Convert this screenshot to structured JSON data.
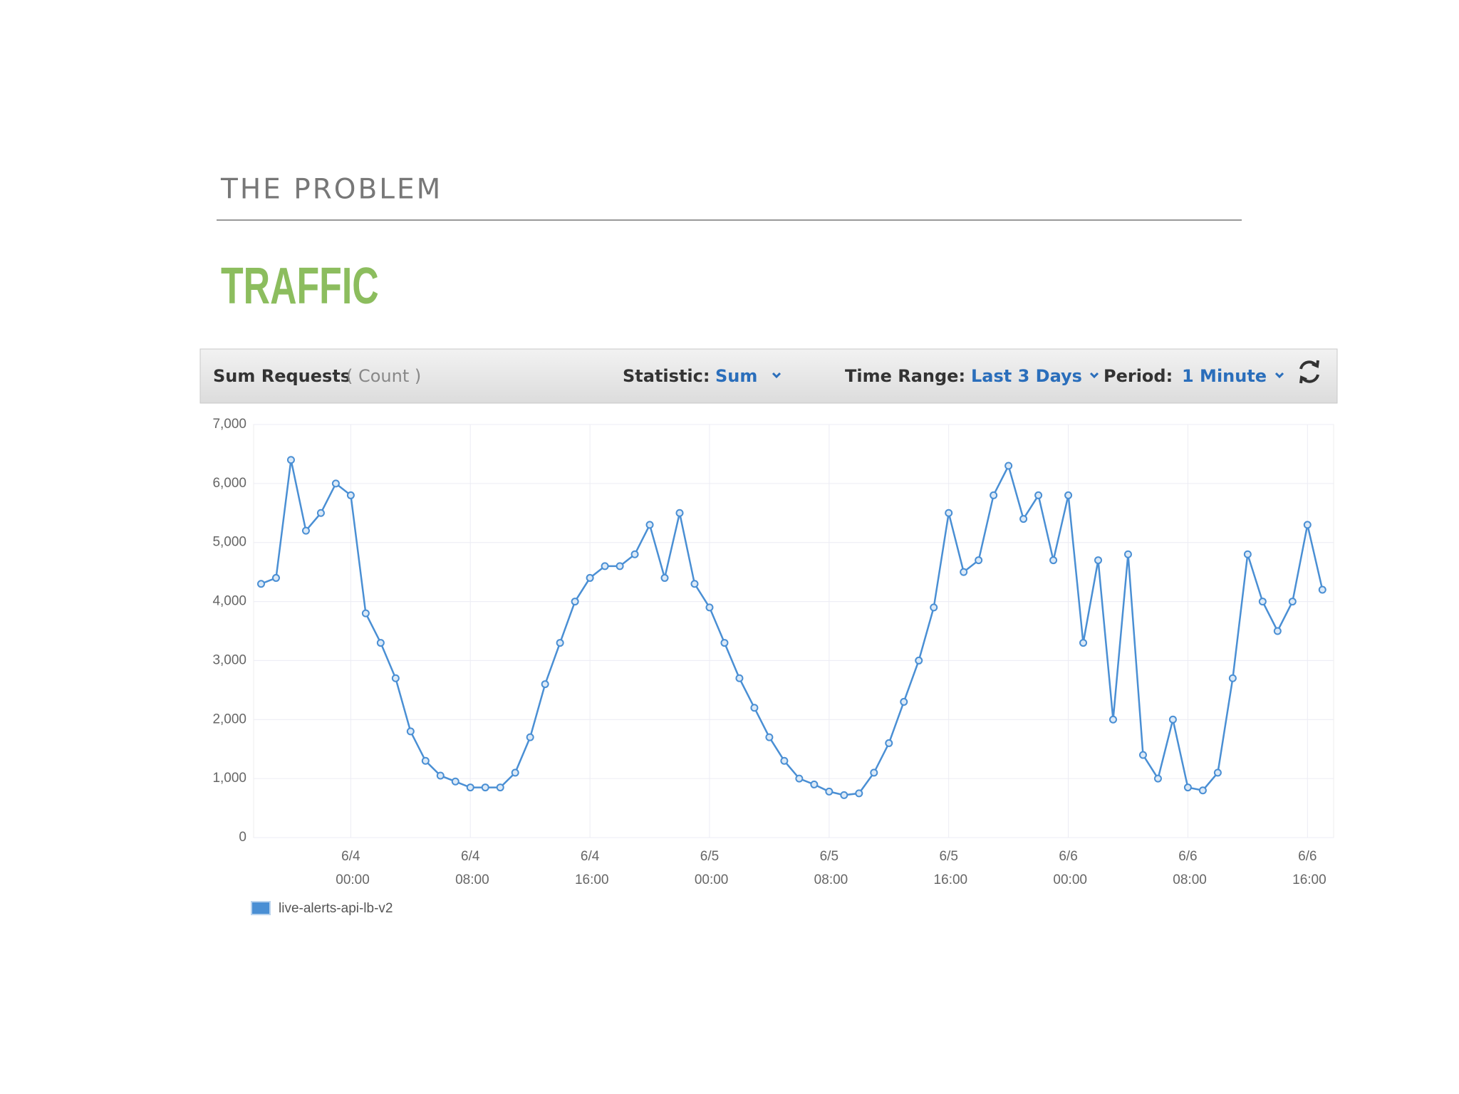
{
  "slide": {
    "section": "THE PROBLEM",
    "heading": "TRAFFIC"
  },
  "toolbar": {
    "metric": "Sum Requests",
    "unit": "( Count )",
    "statistic_label": "Statistic:",
    "statistic": "Sum",
    "range_label": "Time Range:",
    "range": "Last 3 Days",
    "period_label": "Period:",
    "period": "1 Minute"
  },
  "chart_data": {
    "type": "line",
    "x": [
      "6/3 18:00",
      "6/3 19:00",
      "6/3 20:00",
      "6/3 21:00",
      "6/3 22:00",
      "6/3 23:00",
      "6/4 00:00",
      "6/4 01:00",
      "6/4 02:00",
      "6/4 03:00",
      "6/4 04:00",
      "6/4 05:00",
      "6/4 06:00",
      "6/4 07:00",
      "6/4 08:00",
      "6/4 09:00",
      "6/4 10:00",
      "6/4 11:00",
      "6/4 12:00",
      "6/4 13:00",
      "6/4 14:00",
      "6/4 15:00",
      "6/4 16:00",
      "6/4 17:00",
      "6/4 18:00",
      "6/4 19:00",
      "6/4 20:00",
      "6/4 21:00",
      "6/4 22:00",
      "6/4 23:00",
      "6/5 00:00",
      "6/5 01:00",
      "6/5 02:00",
      "6/5 03:00",
      "6/5 04:00",
      "6/5 05:00",
      "6/5 06:00",
      "6/5 07:00",
      "6/5 08:00",
      "6/5 09:00",
      "6/5 10:00",
      "6/5 11:00",
      "6/5 12:00",
      "6/5 13:00",
      "6/5 14:00",
      "6/5 15:00",
      "6/5 16:00",
      "6/5 17:00",
      "6/5 18:00",
      "6/5 19:00",
      "6/5 20:00",
      "6/5 21:00",
      "6/5 22:00",
      "6/5 23:00",
      "6/6 00:00",
      "6/6 01:00",
      "6/6 02:00",
      "6/6 03:00",
      "6/6 04:00",
      "6/6 05:00",
      "6/6 06:00",
      "6/6 07:00",
      "6/6 08:00",
      "6/6 09:00",
      "6/6 10:00",
      "6/6 11:00",
      "6/6 12:00",
      "6/6 13:00",
      "6/6 14:00",
      "6/6 15:00",
      "6/6 16:00",
      "6/6 17:00"
    ],
    "series": [
      {
        "name": "live-alerts-api-lb-v2",
        "color": "#4a8fd4",
        "values": [
          4300,
          4400,
          6400,
          5200,
          5500,
          6000,
          5800,
          3800,
          3300,
          2700,
          1800,
          1300,
          1050,
          950,
          850,
          850,
          850,
          1100,
          1700,
          2600,
          3300,
          4000,
          4400,
          4600,
          4600,
          4800,
          5300,
          4400,
          5500,
          4300,
          3900,
          3300,
          2700,
          2200,
          1700,
          1300,
          1000,
          900,
          780,
          720,
          750,
          1100,
          1600,
          2300,
          3000,
          3900,
          5500,
          4500,
          4700,
          5800,
          6300,
          5400,
          5800,
          4700,
          5800,
          3300,
          4700,
          2000,
          4800,
          1400,
          1000,
          2000,
          850,
          800,
          1100,
          2700,
          4800,
          4000,
          3500,
          4000,
          5300,
          4200
        ]
      }
    ],
    "xlim": [
      "6/3 17:30",
      "6/6 17:45"
    ],
    "xticks": [
      "6/4 00:00",
      "6/4 08:00",
      "6/4 16:00",
      "6/5 00:00",
      "6/5 08:00",
      "6/5 16:00",
      "6/6 00:00",
      "6/6 08:00",
      "6/6 16:00"
    ],
    "ylim": [
      0,
      7000
    ],
    "yticks": [
      0,
      {
        "value": 1000,
        "label": "1,000"
      },
      {
        "value": 2000,
        "label": "2,000"
      },
      {
        "value": 3000,
        "label": "3,000"
      },
      {
        "value": 4000,
        "label": "4,000"
      },
      {
        "value": 5000,
        "label": "5,000"
      },
      {
        "value": 6000,
        "label": "6,000"
      },
      {
        "value": 7000,
        "label": "7,000"
      }
    ],
    "grid": true
  }
}
